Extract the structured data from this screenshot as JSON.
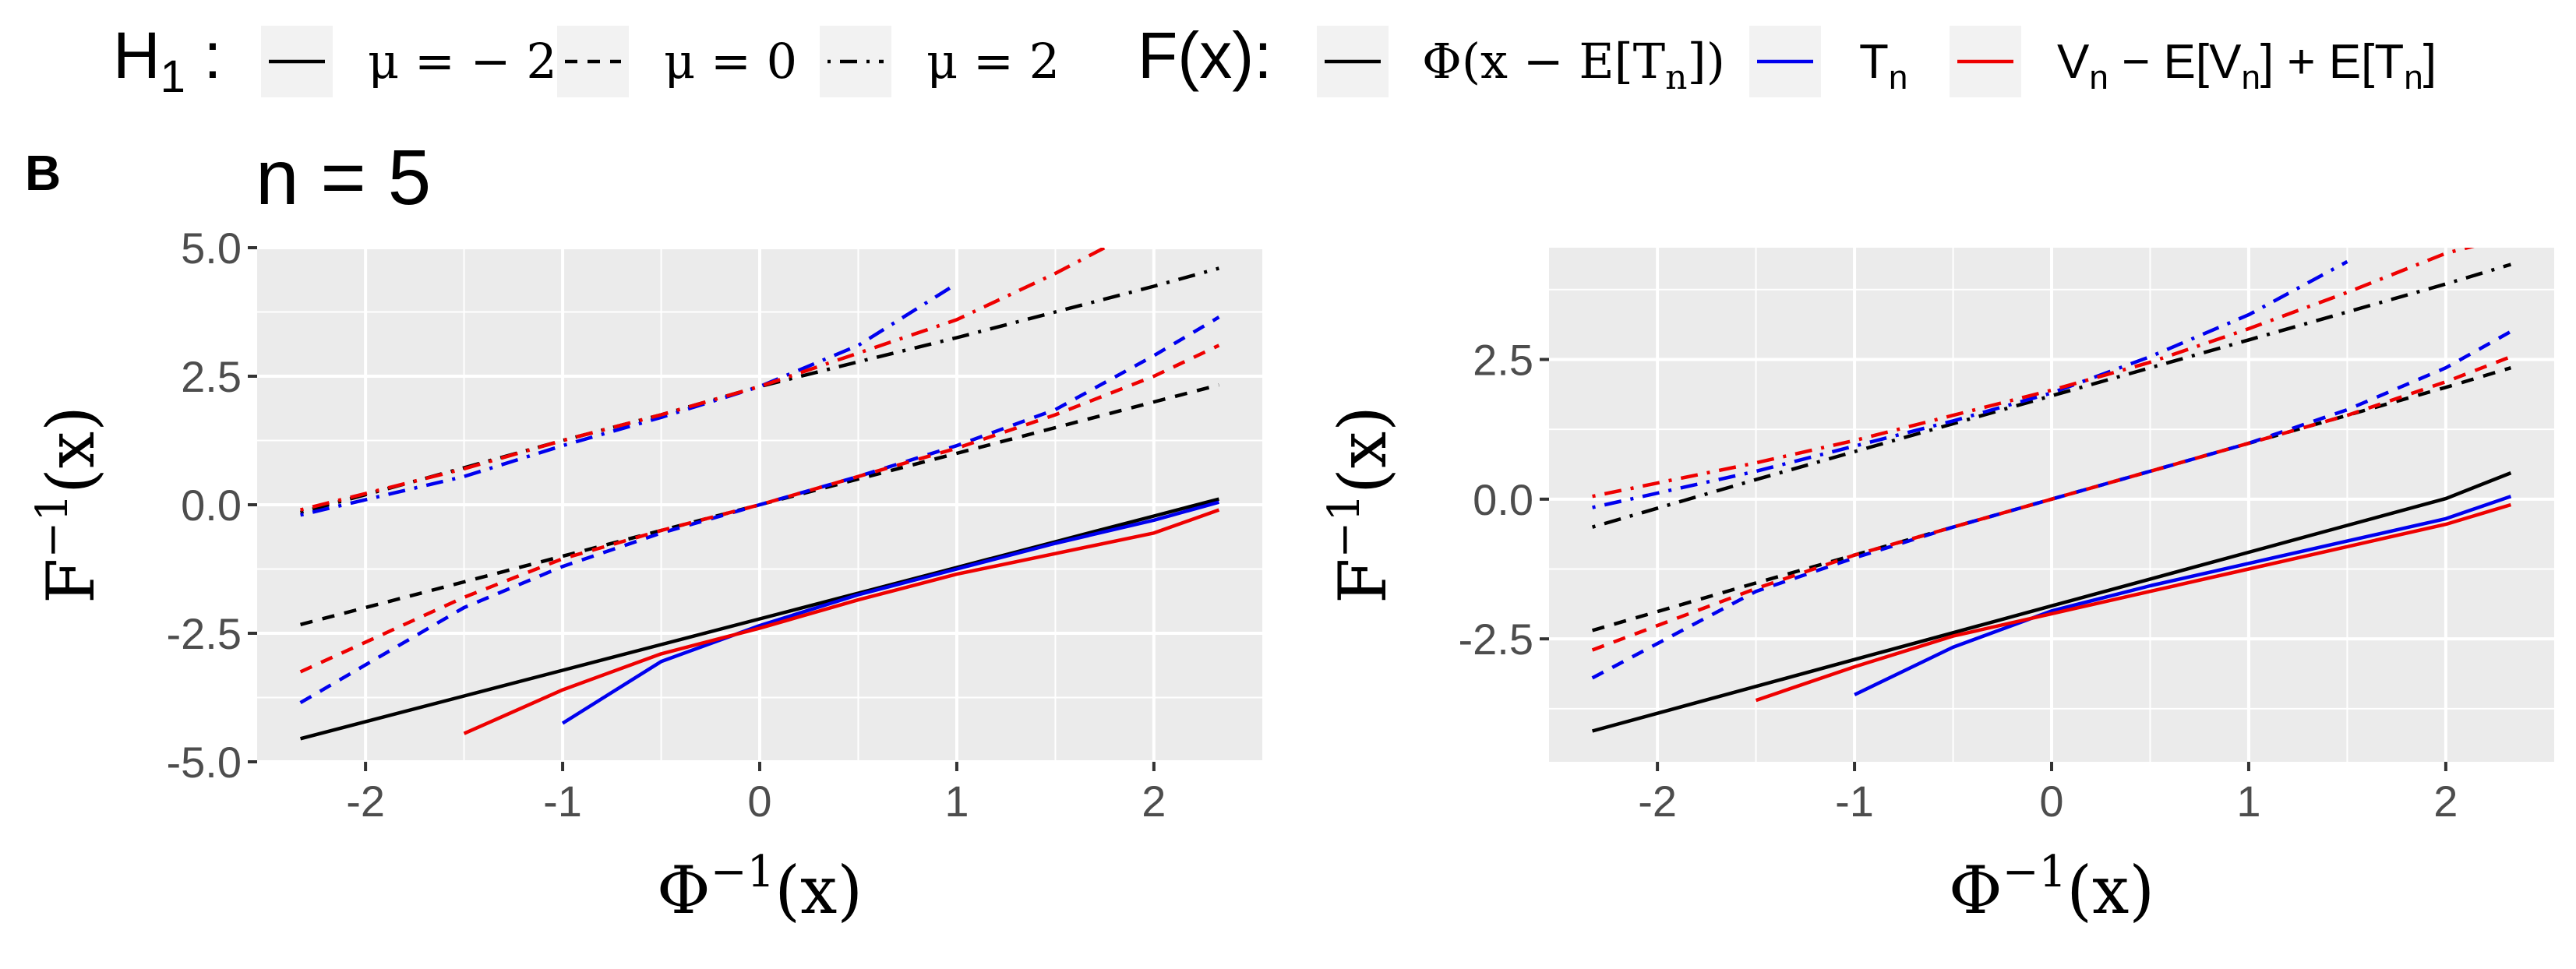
{
  "figure": {
    "tag": "B",
    "legend": {
      "h1_title_main": "H",
      "h1_title_sub": "1",
      "h1_title_colon": " :",
      "h1_items": [
        {
          "label": "μ = − 2",
          "linetype": "solid"
        },
        {
          "label": "μ = 0",
          "linetype": "dashed"
        },
        {
          "label": "μ = 2",
          "linetype": "dotdash"
        }
      ],
      "f_title": "F(x):",
      "f_items": [
        {
          "label": "Φ(x − E[T n])",
          "color": "#000000"
        },
        {
          "label": "T n",
          "color": "#0000ee"
        },
        {
          "label": "V n − E[V n] + E[T n]",
          "color": "#ee0000"
        }
      ]
    }
  },
  "chart_data": [
    {
      "type": "line",
      "title": "n = 5",
      "xlabel": "Φ⁻¹(x)",
      "ylabel": "F⁻¹(x)",
      "xlim": [
        -2.55,
        2.55
      ],
      "ylim": [
        -5.0,
        5.0
      ],
      "xticks": [
        -2,
        -1,
        0,
        1,
        2
      ],
      "yticks": [
        -5.0,
        -2.5,
        0.0,
        2.5,
        5.0
      ],
      "ytick_labels": [
        "-5.0",
        "-2.5",
        "0.0",
        "2.5",
        "5.0"
      ],
      "grid": true,
      "x": [
        -2.33,
        -1.5,
        -1.0,
        -0.5,
        0.0,
        0.5,
        1.0,
        1.5,
        2.0,
        2.33
      ],
      "series": [
        {
          "mu": -2,
          "color": "#000000",
          "linetype": "solid",
          "values": [
            -4.55,
            -3.72,
            -3.22,
            -2.72,
            -2.22,
            -1.72,
            -1.22,
            -0.72,
            -0.22,
            0.11
          ]
        },
        {
          "mu": -2,
          "color": "#0000ee",
          "linetype": "solid",
          "values": [
            null,
            null,
            -4.25,
            -3.05,
            -2.35,
            -1.75,
            -1.25,
            -0.75,
            -0.3,
            0.05
          ]
        },
        {
          "mu": -2,
          "color": "#ee0000",
          "linetype": "solid",
          "values": [
            null,
            -4.45,
            -3.6,
            -2.9,
            -2.4,
            -1.85,
            -1.35,
            -0.95,
            -0.55,
            -0.1
          ]
        },
        {
          "mu": 0,
          "color": "#000000",
          "linetype": "dashed",
          "values": [
            -2.33,
            -1.5,
            -1.0,
            -0.5,
            0.0,
            0.5,
            1.0,
            1.5,
            2.0,
            2.33
          ]
        },
        {
          "mu": 0,
          "color": "#0000ee",
          "linetype": "dashed",
          "values": [
            -3.85,
            -2.0,
            -1.2,
            -0.55,
            0.0,
            0.55,
            1.15,
            1.85,
            2.9,
            3.65
          ]
        },
        {
          "mu": 0,
          "color": "#ee0000",
          "linetype": "dashed",
          "values": [
            -3.25,
            -1.8,
            -1.05,
            -0.5,
            0.0,
            0.55,
            1.1,
            1.75,
            2.5,
            3.1
          ]
        },
        {
          "mu": 2,
          "color": "#000000",
          "linetype": "dotdash",
          "values": [
            -0.15,
            0.72,
            1.25,
            1.75,
            2.3,
            2.78,
            3.25,
            3.75,
            4.25,
            4.6
          ]
        },
        {
          "mu": 2,
          "color": "#0000ee",
          "linetype": "dotdash",
          "values": [
            -0.2,
            0.55,
            1.15,
            1.7,
            2.3,
            3.1,
            4.3,
            null,
            null,
            null
          ]
        },
        {
          "mu": 2,
          "color": "#ee0000",
          "linetype": "dotdash",
          "values": [
            -0.1,
            0.7,
            1.25,
            1.75,
            2.3,
            2.95,
            3.6,
            4.5,
            5.5,
            null
          ]
        }
      ]
    },
    {
      "type": "line",
      "title": "",
      "xlabel": "Φ⁻¹(x)",
      "ylabel": "F⁻¹(x)",
      "xlim": [
        -2.55,
        2.55
      ],
      "ylim": [
        -4.7,
        4.5
      ],
      "xticks": [
        -2,
        -1,
        0,
        1,
        2
      ],
      "yticks": [
        -2.5,
        0.0,
        2.5
      ],
      "ytick_labels": [
        "-2.5",
        "0.0",
        "2.5"
      ],
      "grid": true,
      "x": [
        -2.33,
        -1.5,
        -1.0,
        -0.5,
        0.0,
        0.5,
        1.0,
        1.5,
        2.0,
        2.33
      ],
      "series": [
        {
          "mu": -2,
          "color": "#000000",
          "linetype": "solid",
          "values": [
            -4.15,
            -3.35,
            -2.87,
            -2.39,
            -1.91,
            -1.43,
            -0.95,
            -0.47,
            0.01,
            0.47
          ]
        },
        {
          "mu": -2,
          "color": "#0000ee",
          "linetype": "solid",
          "values": [
            null,
            null,
            -3.5,
            -2.65,
            -2.0,
            -1.55,
            -1.15,
            -0.75,
            -0.35,
            0.05
          ]
        },
        {
          "mu": -2,
          "color": "#ee0000",
          "linetype": "solid",
          "values": [
            null,
            -3.6,
            -3.0,
            -2.45,
            -2.05,
            -1.65,
            -1.25,
            -0.85,
            -0.45,
            -0.1
          ]
        },
        {
          "mu": 0,
          "color": "#000000",
          "linetype": "dashed",
          "values": [
            -2.35,
            -1.5,
            -1.0,
            -0.5,
            0.0,
            0.5,
            1.0,
            1.5,
            2.0,
            2.35
          ]
        },
        {
          "mu": 0,
          "color": "#0000ee",
          "linetype": "dashed",
          "values": [
            -3.2,
            -1.65,
            -1.05,
            -0.5,
            0.0,
            0.5,
            1.0,
            1.6,
            2.35,
            3.0
          ]
        },
        {
          "mu": 0,
          "color": "#ee0000",
          "linetype": "dashed",
          "values": [
            -2.7,
            -1.6,
            -1.0,
            -0.5,
            0.0,
            0.5,
            1.0,
            1.5,
            2.1,
            2.55
          ]
        },
        {
          "mu": 2,
          "color": "#000000",
          "linetype": "dotdash",
          "values": [
            -0.5,
            0.35,
            0.85,
            1.35,
            1.85,
            2.35,
            2.85,
            3.35,
            3.85,
            4.2
          ]
        },
        {
          "mu": 2,
          "color": "#0000ee",
          "linetype": "dotdash",
          "values": [
            -0.15,
            0.5,
            0.95,
            1.4,
            1.9,
            2.55,
            3.3,
            4.25,
            null,
            null
          ]
        },
        {
          "mu": 2,
          "color": "#ee0000",
          "linetype": "dotdash",
          "values": [
            0.05,
            0.65,
            1.05,
            1.5,
            1.95,
            2.45,
            3.05,
            3.7,
            4.4,
            4.7
          ]
        }
      ]
    }
  ]
}
